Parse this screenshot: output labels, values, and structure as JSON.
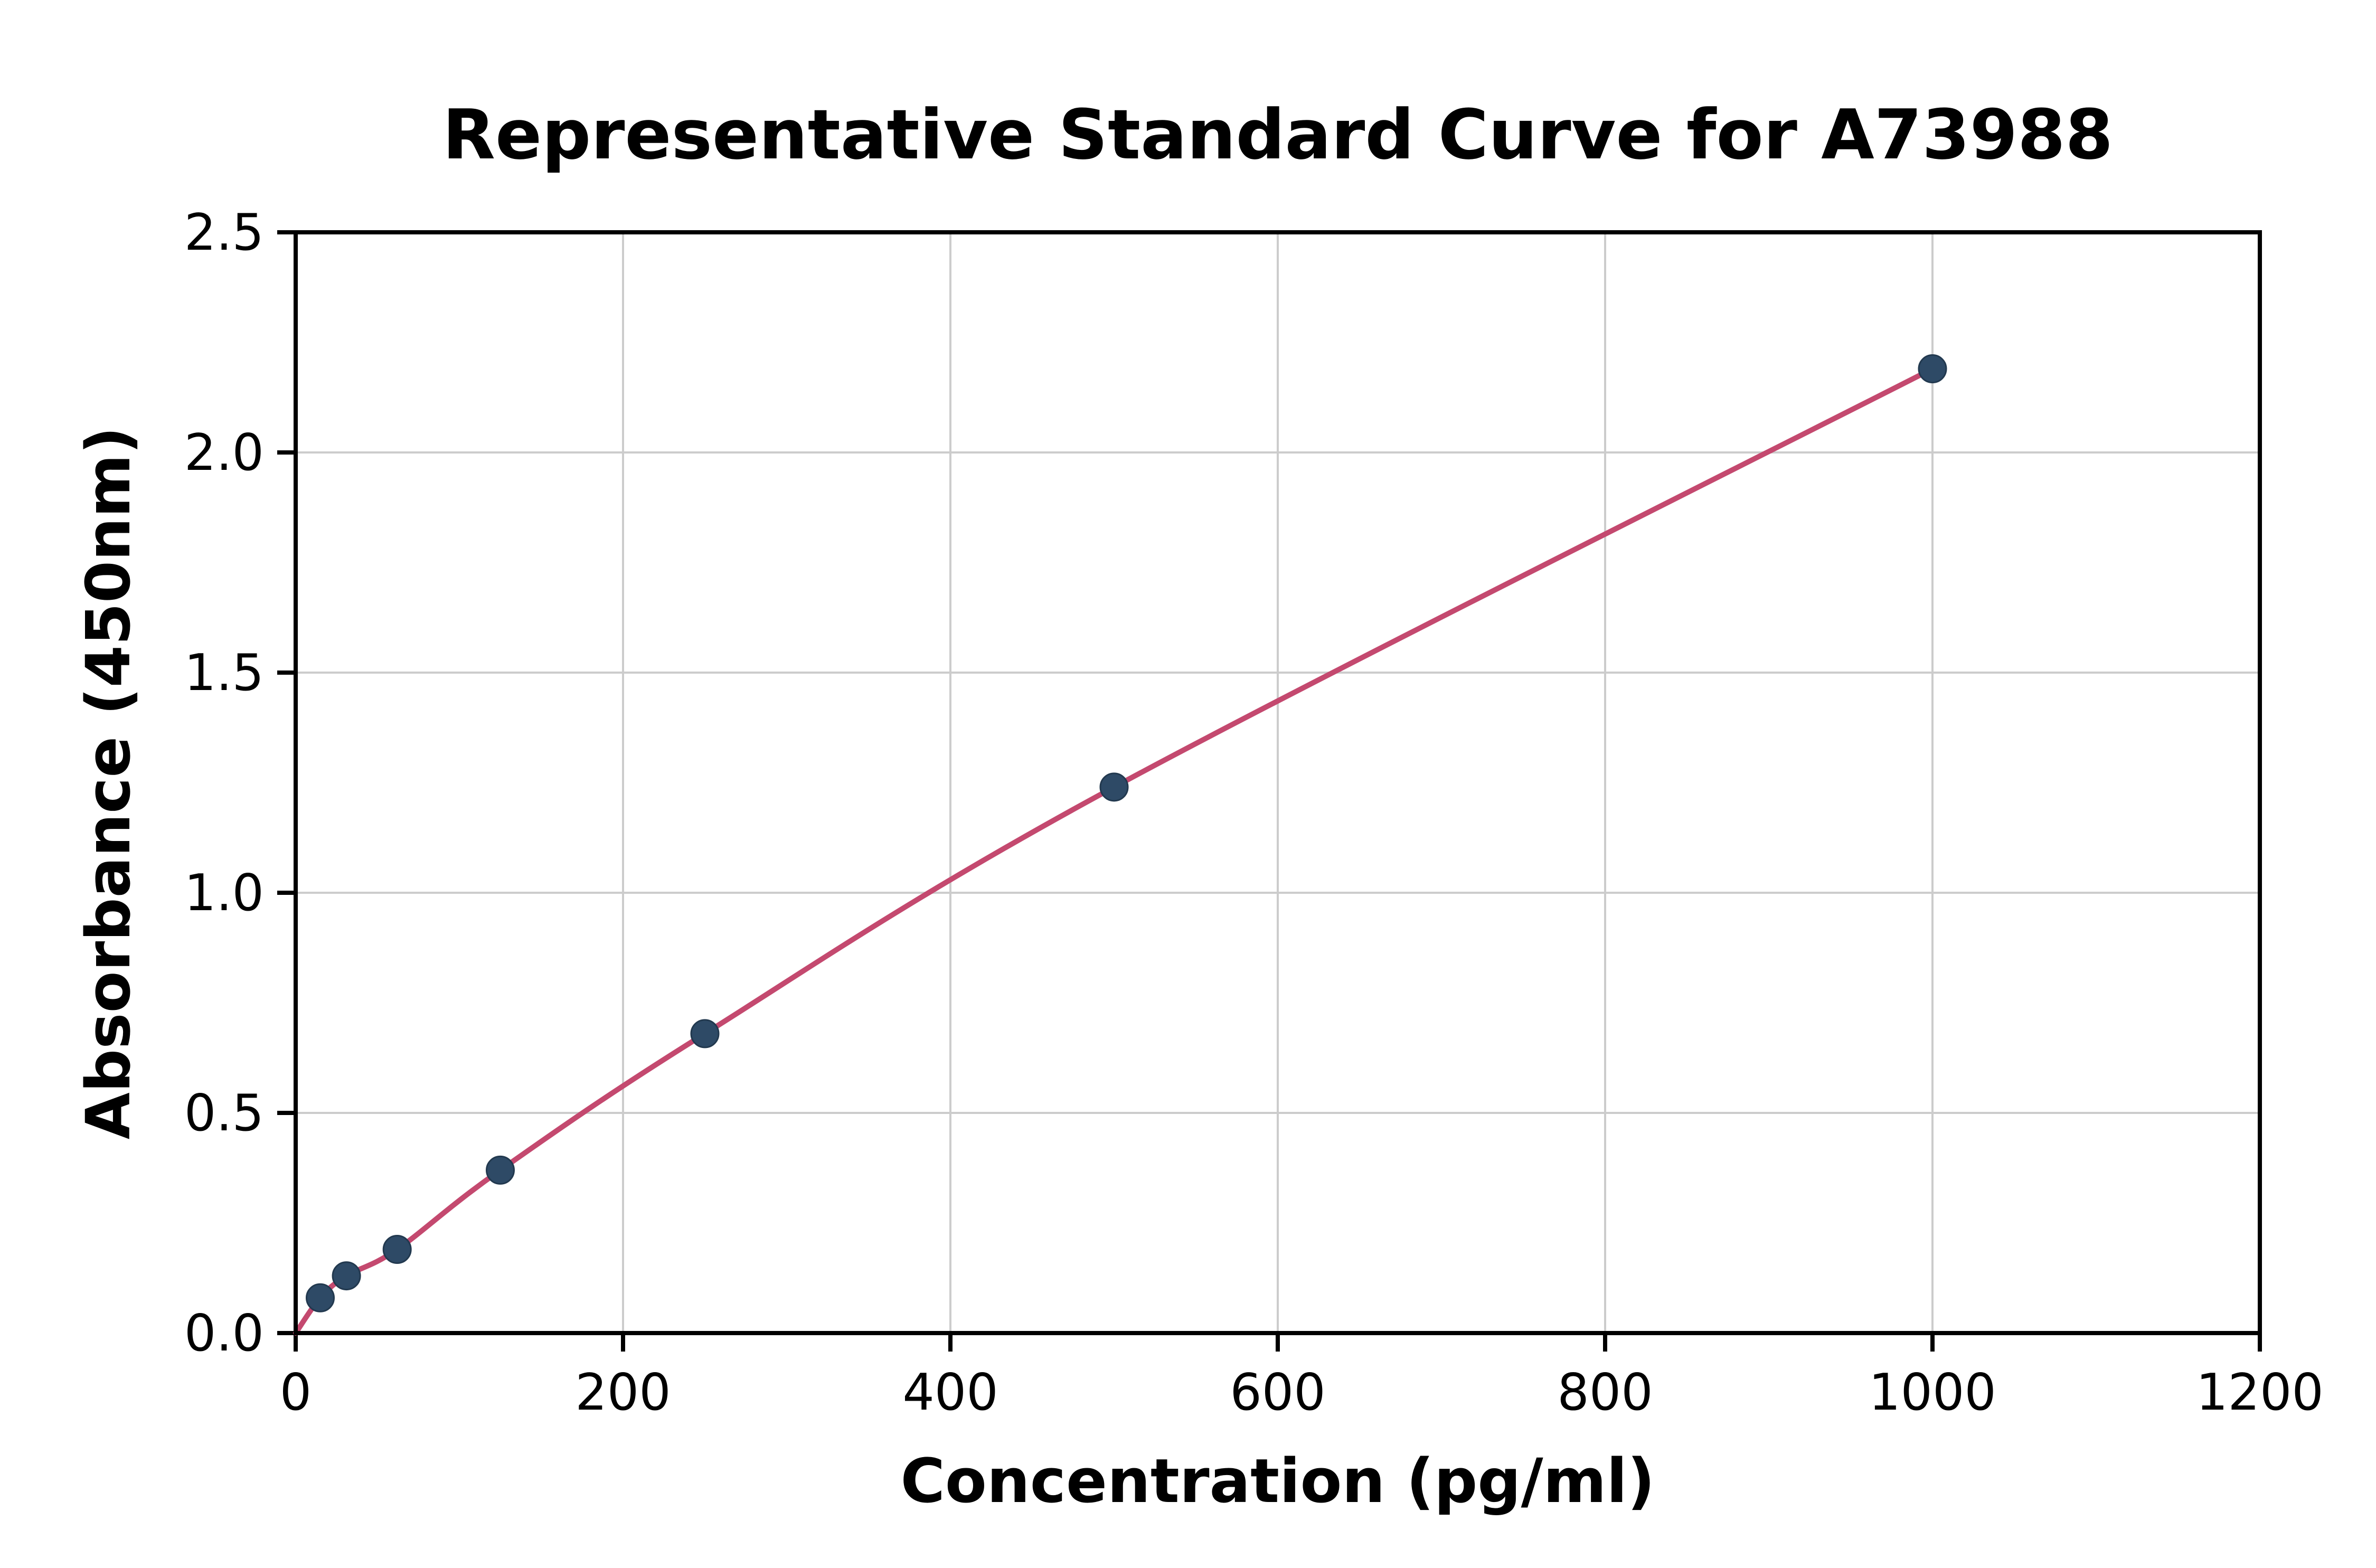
{
  "chart_data": {
    "type": "scatter",
    "title": "Representative Standard Curve for A73988",
    "xlabel": "Concentration (pg/ml)",
    "ylabel": "Absorbance (450nm)",
    "xlim": [
      0,
      1200
    ],
    "ylim": [
      0,
      2.5
    ],
    "xticks": [
      0,
      200,
      400,
      600,
      800,
      1000,
      1200
    ],
    "xtick_labels": [
      "0",
      "200",
      "400",
      "600",
      "800",
      "1000",
      "1200"
    ],
    "yticks": [
      0,
      0.5,
      1.0,
      1.5,
      2.0,
      2.5
    ],
    "ytick_labels": [
      "0.0",
      "0.5",
      "1.0",
      "1.5",
      "2.0",
      "2.5"
    ],
    "grid": true,
    "legend": "none",
    "curve_start": {
      "x": 0,
      "y": 0
    },
    "points": [
      {
        "x": 15,
        "y": 0.08
      },
      {
        "x": 31,
        "y": 0.13
      },
      {
        "x": 62,
        "y": 0.19
      },
      {
        "x": 125,
        "y": 0.37
      },
      {
        "x": 250,
        "y": 0.68
      },
      {
        "x": 500,
        "y": 1.24
      },
      {
        "x": 1000,
        "y": 2.19
      }
    ],
    "colors": {
      "line": "#c4496f",
      "marker": "#2e4a66",
      "marker_edge": "#22394f",
      "grid": "#cccccc",
      "axis": "#000000",
      "background": "#ffffff"
    }
  }
}
